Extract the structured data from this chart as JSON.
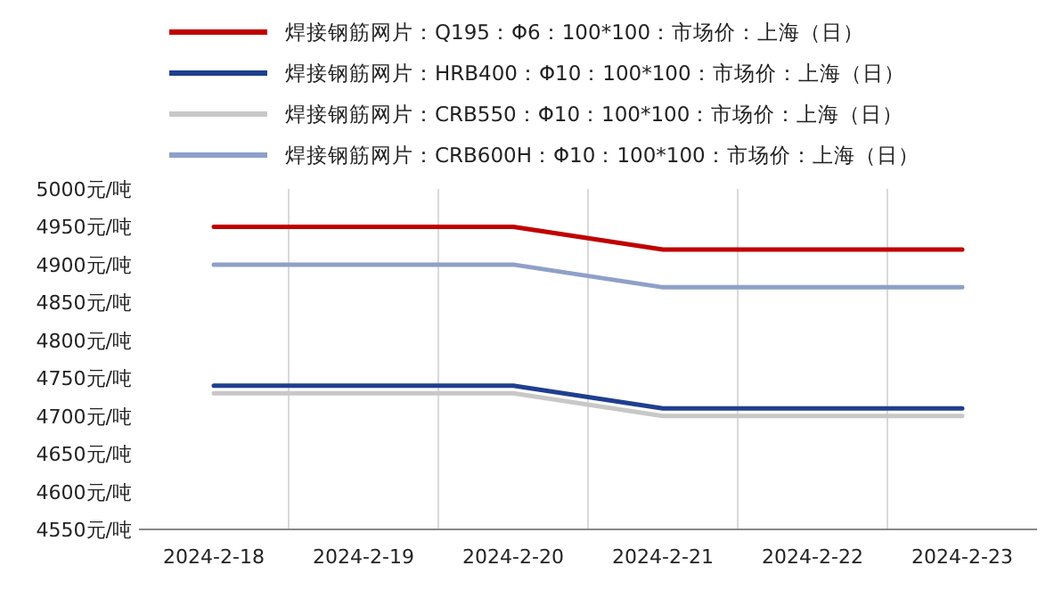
{
  "chart_data": {
    "type": "line",
    "categories": [
      "2024-2-18",
      "2024-2-19",
      "2024-2-20",
      "2024-2-21",
      "2024-2-22",
      "2024-2-23"
    ],
    "series": [
      {
        "name": "焊接钢筋网片：Q195：Φ6：100*100：市场价：上海（日）",
        "color": "#c00000",
        "values": [
          4950,
          4950,
          4950,
          4920,
          4920,
          4920
        ]
      },
      {
        "name": "焊接钢筋网片：HRB400：Φ10：100*100：市场价：上海（日）",
        "color": "#1f3f8f",
        "values": [
          4740,
          4740,
          4740,
          4710,
          4710,
          4710
        ]
      },
      {
        "name": "焊接钢筋网片：CRB550：Φ10：100*100：市场价：上海（日）",
        "color": "#c8c8c8",
        "values": [
          4730,
          4730,
          4730,
          4700,
          4700,
          4700
        ]
      },
      {
        "name": "焊接钢筋网片：CRB600H：Φ10：100*100：市场价：上海（日）",
        "color": "#8fa0c8",
        "values": [
          4900,
          4900,
          4900,
          4870,
          4870,
          4870
        ]
      }
    ],
    "ylim": [
      4550,
      5000
    ],
    "yticks": [
      {
        "value": 4550,
        "label": "4550元/吨"
      },
      {
        "value": 4600,
        "label": "4600元/吨"
      },
      {
        "value": 4650,
        "label": "4650元/吨"
      },
      {
        "value": 4700,
        "label": "4700元/吨"
      },
      {
        "value": 4750,
        "label": "4750元/吨"
      },
      {
        "value": 4800,
        "label": "4800元/吨"
      },
      {
        "value": 4850,
        "label": "4850元/吨"
      },
      {
        "value": 4900,
        "label": "4900元/吨"
      },
      {
        "value": 4950,
        "label": "4950元/吨"
      },
      {
        "value": 5000,
        "label": "5000元/吨"
      }
    ],
    "grid": "x",
    "legend": "top"
  }
}
